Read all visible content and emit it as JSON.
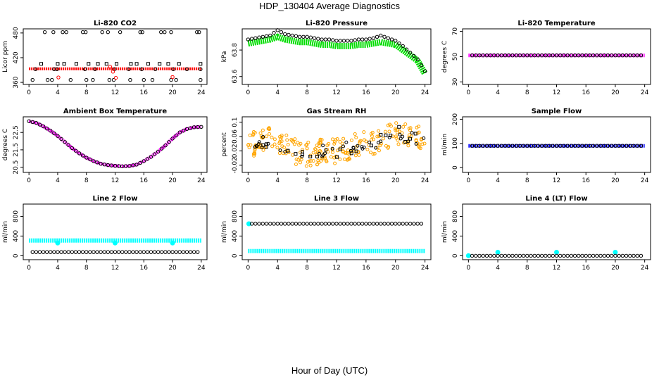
{
  "figure": {
    "title": "HDP_130404  Average Diagnostics",
    "xlabel": "Hour of Day (UTC)"
  },
  "chart_data": [
    {
      "id": "co2",
      "type": "scatter",
      "title": "Li-820 CO2",
      "ylabel": "Licor ppm",
      "xlim": [
        -0.8,
        24.8
      ],
      "ylim": [
        355,
        490
      ],
      "xticks": [
        0,
        4,
        8,
        12,
        16,
        20,
        24
      ],
      "yticks": [
        360,
        420,
        480
      ],
      "series": [
        {
          "kind": "band",
          "color": "#ff0000",
          "x": [
            0,
            24
          ],
          "y": [
            393,
            393
          ],
          "width": 4
        },
        {
          "kind": "points",
          "color": "#000000",
          "shape": "circle",
          "x": [
            2.2,
            3.4,
            4.7,
            5.2,
            7.5,
            7.9,
            10.2,
            11.0,
            12.7,
            15.5,
            15.8,
            18.4,
            18.9,
            19.8,
            23.4,
            23.7
          ],
          "y": [
            482,
            482,
            482,
            482,
            482,
            482,
            482,
            482,
            482,
            482,
            482,
            482,
            482,
            482,
            482,
            482
          ]
        },
        {
          "kind": "points",
          "color": "#000000",
          "shape": "square",
          "x": [
            1.7,
            4.0,
            4.9,
            6.6,
            8.3,
            9.6,
            10.8,
            12.2,
            14.2,
            15.0,
            16.6,
            18.2,
            19.4,
            20.9,
            23.9
          ],
          "y": [
            405,
            405,
            405,
            405,
            405,
            405,
            405,
            405,
            405,
            405,
            405,
            405,
            405,
            405,
            405
          ]
        },
        {
          "kind": "points",
          "color": "#000000",
          "shape": "circle",
          "x": [
            0.5,
            2.6,
            3.2,
            5.8,
            8.0,
            8.9,
            11.2,
            11.8,
            14.1,
            16.0,
            17.2,
            19.8,
            20.5,
            23.9
          ],
          "y": [
            366,
            366,
            366,
            366,
            366,
            366,
            366,
            366,
            366,
            366,
            366,
            366,
            366,
            366
          ]
        },
        {
          "kind": "points",
          "color": "#000000",
          "shape": "circle",
          "x": [
            0.9,
            3.5,
            3.9,
            7.8,
            9.2,
            11.9,
            13.9,
            15.7,
            17.6,
            20.1,
            22.0,
            23.9
          ],
          "y": [
            392,
            392,
            392,
            392,
            392,
            392,
            392,
            392,
            392,
            392,
            392,
            392
          ]
        },
        {
          "kind": "points",
          "color": "#ff0000",
          "shape": "circle",
          "x": [
            4.1,
            11.3,
            11.7,
            12.1,
            20.0
          ],
          "y": [
            372,
            398,
            386,
            371,
            373
          ]
        }
      ]
    },
    {
      "id": "pressure",
      "type": "scatter",
      "title": "Li-820 Pressure",
      "ylabel": "kPa",
      "xlim": [
        -0.8,
        24.8
      ],
      "ylim": [
        63.54,
        63.96
      ],
      "xticks": [
        0,
        4,
        8,
        12,
        16,
        20,
        24
      ],
      "yticks": [
        63.6,
        63.8
      ],
      "series": [
        {
          "kind": "band",
          "color": "#00dd00",
          "x": [
            0,
            1,
            2,
            3,
            4,
            5,
            6,
            7,
            8,
            9,
            10,
            11,
            12,
            13,
            14,
            15,
            16,
            17,
            18,
            19,
            20,
            21,
            22,
            23,
            24
          ],
          "y": [
            63.85,
            63.86,
            63.87,
            63.88,
            63.9,
            63.88,
            63.87,
            63.86,
            63.86,
            63.85,
            63.84,
            63.84,
            63.83,
            63.83,
            63.83,
            63.84,
            63.84,
            63.85,
            63.86,
            63.85,
            63.84,
            63.8,
            63.76,
            63.72,
            63.62
          ],
          "width": 9
        },
        {
          "kind": "line-points",
          "color": "#000000",
          "shape": "circle",
          "x": [
            0,
            1,
            2,
            3,
            4,
            5,
            6,
            7,
            8,
            9,
            10,
            11,
            12,
            13,
            14,
            15,
            16,
            17,
            18,
            19,
            20,
            21,
            22,
            23,
            24
          ],
          "y": [
            63.88,
            63.89,
            63.9,
            63.91,
            63.95,
            63.92,
            63.91,
            63.9,
            63.9,
            63.89,
            63.88,
            63.88,
            63.87,
            63.87,
            63.87,
            63.88,
            63.88,
            63.89,
            63.91,
            63.89,
            63.87,
            63.83,
            63.78,
            63.73,
            63.64
          ]
        }
      ]
    },
    {
      "id": "temp",
      "type": "scatter",
      "title": "Li-820 Temperature",
      "ylabel": "degrees C",
      "xlim": [
        -0.8,
        24.8
      ],
      "ylim": [
        28,
        72
      ],
      "xticks": [
        0,
        4,
        8,
        12,
        16,
        20,
        24
      ],
      "yticks": [
        30,
        50,
        70
      ],
      "series": [
        {
          "kind": "band",
          "color": "#ff00ff",
          "x": [
            0,
            24
          ],
          "y": [
            51,
            51
          ],
          "width": 5
        },
        {
          "kind": "line-points",
          "color": "#000000",
          "shape": "circle",
          "x": [
            0.5,
            1.5,
            2.5,
            3.5,
            4.5,
            5.5,
            6.5,
            7.5,
            8.5,
            9.5,
            10.5,
            11.5,
            12.5,
            13.5,
            14.5,
            15.5,
            16.5,
            17.5,
            18.5,
            19.5,
            20.5,
            21.5,
            22.5,
            23.5
          ],
          "y": [
            51,
            51,
            51,
            51,
            51,
            51,
            51,
            51,
            51,
            51,
            51,
            51,
            51,
            51,
            51,
            51,
            51,
            51,
            51,
            51,
            51,
            51,
            51,
            51
          ]
        }
      ]
    },
    {
      "id": "ambient",
      "type": "scatter",
      "title": "Ambient Box Temperature",
      "ylabel": "degrees C",
      "xlim": [
        -0.8,
        24.8
      ],
      "ylim": [
        20.2,
        23.4
      ],
      "xticks": [
        0,
        4,
        8,
        12,
        16,
        20,
        24
      ],
      "yticks": [
        20.5,
        21.5,
        22.5
      ],
      "series": [
        {
          "kind": "band",
          "color": "#ff00ff",
          "x": [
            0,
            1,
            2,
            3,
            4,
            5,
            6,
            7,
            8,
            9,
            10,
            11,
            12,
            13,
            14,
            15,
            16,
            17,
            18,
            19,
            20,
            21,
            22,
            23,
            24
          ],
          "y": [
            23.15,
            23.05,
            22.85,
            22.6,
            22.3,
            21.95,
            21.6,
            21.3,
            21.05,
            20.85,
            20.7,
            20.62,
            20.58,
            20.55,
            20.57,
            20.65,
            20.85,
            21.1,
            21.4,
            21.75,
            22.15,
            22.5,
            22.7,
            22.8,
            22.82
          ],
          "width": 5
        },
        {
          "kind": "line-points",
          "color": "#000000",
          "shape": "circle",
          "x": [
            0,
            1,
            2,
            3,
            4,
            5,
            6,
            7,
            8,
            9,
            10,
            11,
            12,
            13,
            14,
            15,
            16,
            17,
            18,
            19,
            20,
            21,
            22,
            23,
            24
          ],
          "y": [
            23.15,
            23.05,
            22.85,
            22.6,
            22.3,
            21.95,
            21.6,
            21.3,
            21.05,
            20.85,
            20.7,
            20.62,
            20.58,
            20.55,
            20.57,
            20.65,
            20.85,
            21.1,
            21.4,
            21.75,
            22.15,
            22.5,
            22.7,
            22.8,
            22.82
          ]
        }
      ]
    },
    {
      "id": "rh",
      "type": "scatter",
      "title": "Gas Stream RH",
      "ylabel": "percent",
      "xlim": [
        -0.8,
        24.8
      ],
      "ylim": [
        -0.04,
        0.115
      ],
      "xticks": [
        0,
        4,
        8,
        12,
        16,
        20,
        24
      ],
      "yticks": [
        -0.02,
        0.02,
        0.06,
        0.1
      ],
      "series": [
        {
          "kind": "scatter-cloud",
          "color": "#ffa500",
          "center": [
            0.05,
            0.04,
            0.045,
            0.05,
            0.04,
            0.035,
            0.02,
            0.01,
            0.01,
            0.015,
            0.02,
            0.025,
            0.02,
            0.025,
            0.03,
            0.035,
            0.04,
            0.045,
            0.05,
            0.06,
            0.07,
            0.065,
            0.06,
            0.055,
            0.05
          ],
          "spread": 0.035
        },
        {
          "kind": "scatter-cloud",
          "color": "#000000",
          "center": [
            0.05,
            0.04,
            0.045,
            0.05,
            0.04,
            0.035,
            0.02,
            0.01,
            0.01,
            0.015,
            0.02,
            0.025,
            0.02,
            0.025,
            0.03,
            0.035,
            0.04,
            0.045,
            0.05,
            0.06,
            0.07,
            0.065,
            0.06,
            0.055,
            0.05
          ],
          "spread": 0.02
        }
      ]
    },
    {
      "id": "sampleflow",
      "type": "scatter",
      "title": "Sample Flow",
      "ylabel": "ml/min",
      "xlim": [
        -0.8,
        24.8
      ],
      "ylim": [
        -20,
        210
      ],
      "xticks": [
        0,
        4,
        8,
        12,
        16,
        20,
        24
      ],
      "yticks": [
        0,
        100,
        200
      ],
      "series": [
        {
          "kind": "band",
          "color": "#0000ff",
          "x": [
            0,
            24
          ],
          "y": [
            90,
            90
          ],
          "width": 5
        },
        {
          "kind": "line-points",
          "color": "#000000",
          "shape": "circle",
          "x": [
            0.5,
            1.5,
            2.5,
            3.5,
            4.5,
            5.5,
            6.5,
            7.5,
            8.5,
            9.5,
            10.5,
            11.5,
            12.5,
            13.5,
            14.5,
            15.5,
            16.5,
            17.5,
            18.5,
            19.5,
            20.5,
            21.5,
            22.5,
            23.5
          ],
          "y": [
            90,
            90,
            90,
            90,
            90,
            90,
            90,
            90,
            90,
            90,
            90,
            90,
            90,
            90,
            90,
            90,
            90,
            90,
            90,
            90,
            90,
            90,
            90,
            90
          ]
        }
      ]
    },
    {
      "id": "line2",
      "type": "scatter",
      "title": "Line 2 Flow",
      "ylabel": "ml/min",
      "xlim": [
        -0.8,
        24.8
      ],
      "ylim": [
        -80,
        1050
      ],
      "xticks": [
        0,
        4,
        8,
        12,
        16,
        20,
        24
      ],
      "yticks": [
        0,
        400,
        800
      ],
      "series": [
        {
          "kind": "band",
          "color": "#00ffff",
          "x": [
            0,
            24
          ],
          "y": [
            310,
            310
          ],
          "width": 6
        },
        {
          "kind": "points",
          "color": "#00ffff",
          "shape": "circle",
          "x": [
            4,
            12,
            20
          ],
          "y": [
            260,
            260,
            260
          ]
        },
        {
          "kind": "line-points",
          "color": "#000000",
          "shape": "circle",
          "x": [
            0.5,
            1.5,
            2.5,
            3.5,
            4.5,
            5.5,
            6.5,
            7.5,
            8.5,
            9.5,
            10.5,
            11.5,
            12.5,
            13.5,
            14.5,
            15.5,
            16.5,
            17.5,
            18.5,
            19.5,
            20.5,
            21.5,
            22.5,
            23.5
          ],
          "y": [
            75,
            75,
            75,
            75,
            75,
            75,
            75,
            75,
            75,
            75,
            75,
            75,
            75,
            75,
            75,
            75,
            75,
            75,
            75,
            75,
            75,
            75,
            75,
            75
          ]
        }
      ]
    },
    {
      "id": "line3",
      "type": "scatter",
      "title": "Line 3 Flow",
      "ylabel": "ml/min",
      "xlim": [
        -0.8,
        24.8
      ],
      "ylim": [
        -80,
        1050
      ],
      "xticks": [
        0,
        4,
        8,
        12,
        16,
        20,
        24
      ],
      "yticks": [
        0,
        400,
        800
      ],
      "series": [
        {
          "kind": "band",
          "color": "#00ffff",
          "x": [
            0,
            24
          ],
          "y": [
            95,
            95
          ],
          "width": 6
        },
        {
          "kind": "points",
          "color": "#00ffff",
          "shape": "circle",
          "x": [
            0.1
          ],
          "y": [
            650
          ]
        },
        {
          "kind": "line-points",
          "color": "#000000",
          "shape": "circle",
          "x": [
            0.5,
            1.5,
            2.5,
            3.5,
            4.5,
            5.5,
            6.5,
            7.5,
            8.5,
            9.5,
            10.5,
            11.5,
            12.5,
            13.5,
            14.5,
            15.5,
            16.5,
            17.5,
            18.5,
            19.5,
            20.5,
            21.5,
            22.5,
            23.5
          ],
          "y": [
            650,
            650,
            650,
            650,
            650,
            650,
            650,
            650,
            650,
            650,
            650,
            650,
            650,
            650,
            650,
            650,
            650,
            650,
            650,
            650,
            650,
            650,
            650,
            650
          ]
        }
      ]
    },
    {
      "id": "line4",
      "type": "scatter",
      "title": "Line 4 (LT) Flow",
      "ylabel": "ml/min",
      "xlim": [
        -0.8,
        24.8
      ],
      "ylim": [
        -80,
        1050
      ],
      "xticks": [
        0,
        4,
        8,
        12,
        16,
        20,
        24
      ],
      "yticks": [
        0,
        400,
        800
      ],
      "series": [
        {
          "kind": "points",
          "color": "#00ffff",
          "shape": "circle",
          "x": [
            0,
            4,
            12,
            20
          ],
          "y": [
            0,
            70,
            70,
            70
          ]
        },
        {
          "kind": "line-points",
          "color": "#000000",
          "shape": "circle",
          "x": [
            0.5,
            1.5,
            2.5,
            3.5,
            4.5,
            5.5,
            6.5,
            7.5,
            8.5,
            9.5,
            10.5,
            11.5,
            12.5,
            13.5,
            14.5,
            15.5,
            16.5,
            17.5,
            18.5,
            19.5,
            20.5,
            21.5,
            22.5,
            23.5
          ],
          "y": [
            0,
            0,
            0,
            0,
            0,
            0,
            0,
            0,
            0,
            0,
            0,
            0,
            0,
            0,
            0,
            0,
            0,
            0,
            0,
            0,
            0,
            0,
            0,
            0
          ]
        }
      ]
    }
  ]
}
